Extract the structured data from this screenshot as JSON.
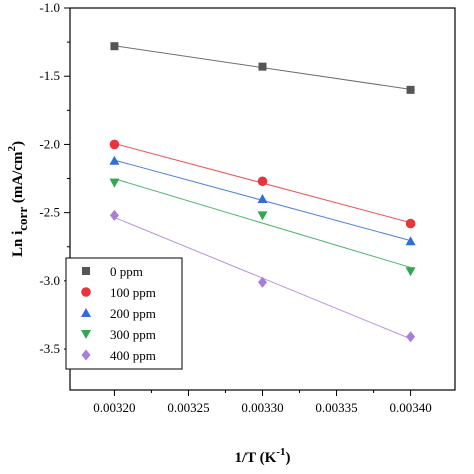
{
  "chart_data": {
    "type": "scatter",
    "xlabel": "1/T (K",
    "xlabel_sup": "-1",
    "xlabel_close": ")",
    "ylabel_main": "Ln i",
    "ylabel_sub": "corr",
    "ylabel_unit": " (mA/cm",
    "ylabel_sup": "2",
    "ylabel_close": ")",
    "xlim": [
      0.00317,
      0.00343
    ],
    "ylim": [
      -3.8,
      -1.0
    ],
    "xticks": [
      0.0032,
      0.00325,
      0.0033,
      0.00335,
      0.0034
    ],
    "xtick_labels": [
      "0.00320",
      "0.00325",
      "0.00330",
      "0.00335",
      "0.00340"
    ],
    "yticks": [
      -1.0,
      -1.5,
      -2.0,
      -2.5,
      -3.0,
      -3.5
    ],
    "ytick_labels": [
      "-1.0",
      "-1.5",
      "-2.0",
      "-2.5",
      "-3.0",
      "-3.5"
    ],
    "legend_position": "bottom-left",
    "fit_lines": true,
    "x": [
      0.0032,
      0.0033,
      0.0034
    ],
    "series": [
      {
        "name": "0 ppm",
        "marker": "square",
        "color": "#555555",
        "values": [
          -1.28,
          -1.43,
          -1.6
        ]
      },
      {
        "name": "100 ppm",
        "marker": "circle",
        "color": "#e8343a",
        "values": [
          -2.0,
          -2.27,
          -2.58
        ]
      },
      {
        "name": "200 ppm",
        "marker": "triangle-up",
        "color": "#2f6fd6",
        "values": [
          -2.12,
          -2.4,
          -2.71
        ]
      },
      {
        "name": "300 ppm",
        "marker": "triangle-down",
        "color": "#2fa84f",
        "values": [
          -2.28,
          -2.52,
          -2.93
        ]
      },
      {
        "name": "400 ppm",
        "marker": "diamond",
        "color": "#a97ed9",
        "values": [
          -2.52,
          -3.01,
          -3.41
        ]
      }
    ]
  }
}
